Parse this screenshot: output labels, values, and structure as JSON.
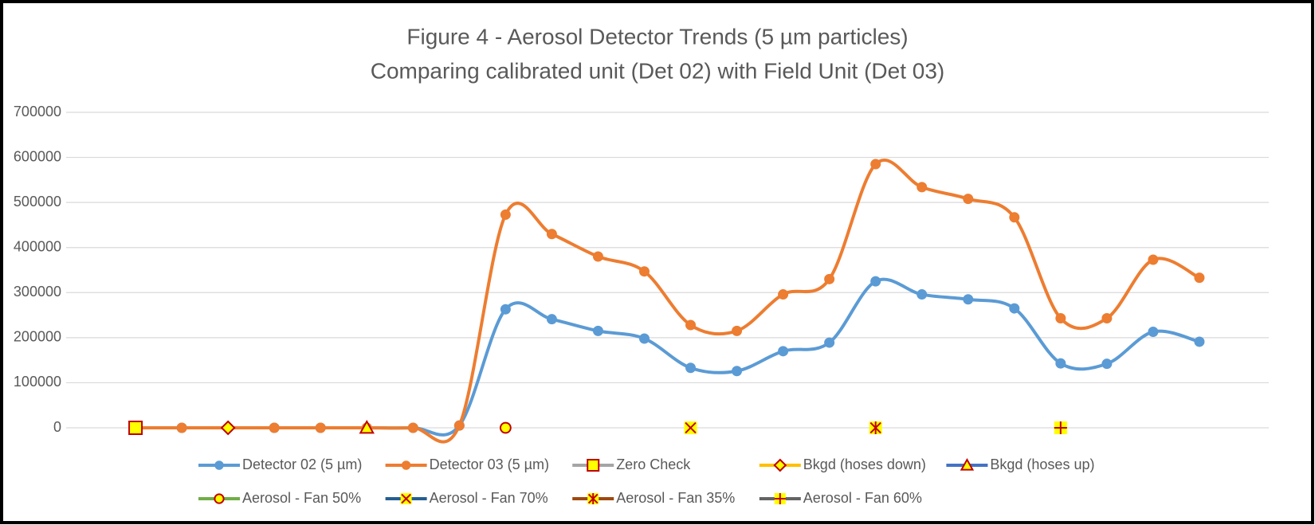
{
  "chart_data": {
    "type": "line",
    "title": "Figure 4 - Aerosol Detector Trends (5 µm particles)",
    "subtitle": "Comparing calibrated unit (Det 02) with Field Unit (Det 03)",
    "categories": [
      null,
      null,
      null,
      null,
      null,
      null,
      null,
      null,
      null,
      null,
      null,
      null,
      null,
      null,
      null,
      null,
      null,
      null,
      null,
      null,
      null,
      null,
      null,
      null,
      null,
      null
    ],
    "series": [
      {
        "name": "Detector 02 (5 µm)",
        "color": "#5b9bd5",
        "marker": "circle",
        "smooth": true,
        "values": [
          null,
          0,
          0,
          0,
          0,
          0,
          0,
          0,
          5000,
          263000,
          241000,
          215000,
          198000,
          133000,
          126000,
          170000,
          189000,
          325000,
          296000,
          285000,
          265000,
          143000,
          142000,
          213000,
          191000,
          null
        ]
      },
      {
        "name": "Detector 03 (5 µm)",
        "color": "#ed7d31",
        "marker": "circle",
        "smooth": true,
        "values": [
          null,
          0,
          0,
          0,
          0,
          0,
          0,
          0,
          5000,
          473000,
          430000,
          380000,
          347000,
          228000,
          215000,
          296000,
          330000,
          585000,
          534000,
          508000,
          467000,
          243000,
          243000,
          373000,
          333000,
          null
        ]
      },
      {
        "name": "Zero Check",
        "color": "#a5a5a5",
        "marker": "square",
        "values": [
          null,
          0,
          null,
          null,
          null,
          null,
          null,
          null,
          null,
          null,
          null,
          null,
          null,
          null,
          null,
          null,
          null,
          null,
          null,
          null,
          null,
          null,
          null,
          null,
          null,
          null
        ]
      },
      {
        "name": "Bkgd (hoses down)",
        "color": "#ffc000",
        "marker": "diamond",
        "values": [
          null,
          null,
          null,
          0,
          null,
          null,
          null,
          null,
          null,
          null,
          null,
          null,
          null,
          null,
          null,
          null,
          null,
          null,
          null,
          null,
          null,
          null,
          null,
          null,
          null,
          null
        ]
      },
      {
        "name": "Bkgd (hoses up)",
        "color": "#4472c4",
        "marker": "triangle",
        "values": [
          null,
          null,
          null,
          null,
          null,
          null,
          0,
          null,
          null,
          null,
          null,
          null,
          null,
          null,
          null,
          null,
          null,
          null,
          null,
          null,
          null,
          null,
          null,
          null,
          null,
          null
        ]
      },
      {
        "name": "Aerosol - Fan 50%",
        "color": "#70ad47",
        "marker": "circle-open",
        "values": [
          null,
          null,
          null,
          null,
          null,
          null,
          null,
          null,
          null,
          0,
          null,
          null,
          null,
          null,
          null,
          null,
          null,
          null,
          null,
          null,
          null,
          null,
          null,
          null,
          null,
          null
        ]
      },
      {
        "name": "Aerosol - Fan 70%",
        "color": "#255e91",
        "marker": "x",
        "values": [
          null,
          null,
          null,
          null,
          null,
          null,
          null,
          null,
          null,
          null,
          null,
          null,
          null,
          0,
          null,
          null,
          null,
          null,
          null,
          null,
          null,
          null,
          null,
          null,
          null,
          null
        ]
      },
      {
        "name": "Aerosol - Fan 35%",
        "color": "#9e480e",
        "marker": "star",
        "values": [
          null,
          null,
          null,
          null,
          null,
          null,
          null,
          null,
          null,
          null,
          null,
          null,
          null,
          null,
          null,
          null,
          null,
          0,
          null,
          null,
          null,
          null,
          null,
          null,
          null,
          null
        ]
      },
      {
        "name": "Aerosol - Fan 60%",
        "color": "#636363",
        "marker": "plus",
        "values": [
          null,
          null,
          null,
          null,
          null,
          null,
          null,
          null,
          null,
          null,
          null,
          null,
          null,
          null,
          null,
          null,
          null,
          null,
          null,
          null,
          null,
          0,
          null,
          null,
          null,
          null
        ]
      }
    ],
    "ylim": [
      0,
      700000
    ],
    "yticks": [
      0,
      100000,
      200000,
      300000,
      400000,
      500000,
      600000,
      700000
    ],
    "grid": true,
    "marker_fill": "#ffff00",
    "marker_stroke": "#c00000",
    "legend": "bottom"
  }
}
